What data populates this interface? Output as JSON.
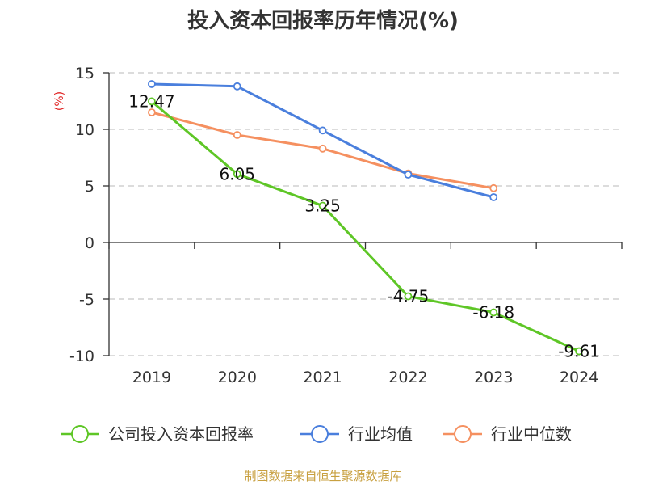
{
  "chart_data": {
    "type": "line",
    "title": "投入资本回报率历年情况(%)",
    "ylabel": "(%)",
    "xlabel": "",
    "categories": [
      "2019",
      "2020",
      "2021",
      "2022",
      "2023",
      "2024"
    ],
    "ylim": [
      -10,
      15
    ],
    "yticks": [
      15,
      10,
      5,
      0,
      -5,
      -10
    ],
    "grid": true,
    "series": [
      {
        "name": "公司投入资本回报率",
        "color": "#5ec626",
        "values": [
          12.47,
          6.05,
          3.25,
          -4.75,
          -6.18,
          -9.61
        ],
        "labels": [
          "12.47",
          "6.05",
          "3.25",
          "-4.75",
          "-6.18",
          "-9.61"
        ]
      },
      {
        "name": "行业均值",
        "color": "#4a7fdd",
        "values": [
          14.0,
          13.8,
          9.9,
          6.0,
          4.0,
          null
        ]
      },
      {
        "name": "行业中位数",
        "color": "#f59060",
        "values": [
          11.5,
          9.5,
          8.3,
          6.1,
          4.8,
          null
        ]
      }
    ],
    "legend_position": "bottom"
  },
  "colors": {
    "unit": "#e02020",
    "source": "#c8a040",
    "grid": "#c8c8c8",
    "axis": "#333333"
  },
  "source_text": "制图数据来自恒生聚源数据库"
}
